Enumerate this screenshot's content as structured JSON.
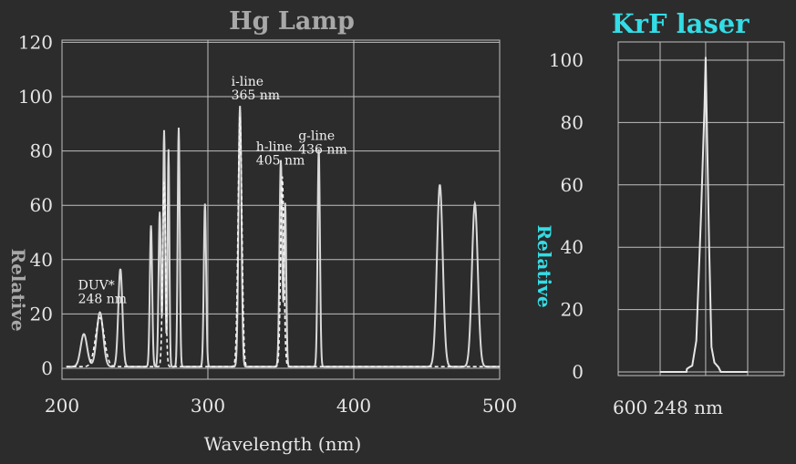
{
  "chart_data": [
    {
      "type": "line",
      "title": "Hg Lamp",
      "xlabel": "Wavelength (nm)",
      "ylabel": "Relative",
      "xlim": [
        200,
        500
      ],
      "ylim": [
        0,
        120
      ],
      "x_ticks": [
        200,
        300,
        400,
        500
      ],
      "y_ticks": [
        0,
        20,
        40,
        60,
        80,
        100,
        120
      ],
      "grid": true,
      "series": [
        {
          "style": "solid",
          "color": "#d9d9d9",
          "peaks": [
            {
              "x": 215,
              "y": 12,
              "w": 2.2
            },
            {
              "x": 226,
              "y": 20,
              "w": 2.2
            },
            {
              "x": 240,
              "y": 36,
              "w": 1.4
            },
            {
              "x": 261,
              "y": 52,
              "w": 0.8
            },
            {
              "x": 267,
              "y": 57,
              "w": 0.8
            },
            {
              "x": 270,
              "y": 87,
              "w": 0.7
            },
            {
              "x": 273,
              "y": 80,
              "w": 0.6
            },
            {
              "x": 280,
              "y": 88,
              "w": 0.7
            },
            {
              "x": 298,
              "y": 60,
              "w": 0.8
            },
            {
              "x": 322,
              "y": 96,
              "w": 1.0
            },
            {
              "x": 350,
              "y": 76,
              "w": 0.9
            },
            {
              "x": 353,
              "y": 60,
              "w": 0.7
            },
            {
              "x": 376,
              "y": 80,
              "w": 0.8
            },
            {
              "x": 459,
              "y": 67,
              "w": 2.0
            },
            {
              "x": 483,
              "y": 60,
              "w": 2.0
            }
          ]
        },
        {
          "style": "dashed",
          "color": "#f5f5f5",
          "peaks": [
            {
              "x": 226,
              "y": 18,
              "w": 3.0
            },
            {
              "x": 270,
              "y": 68,
              "w": 1.0
            },
            {
              "x": 322,
              "y": 92,
              "w": 1.3
            },
            {
              "x": 351,
              "y": 70,
              "w": 1.1
            }
          ]
        }
      ],
      "annotations": [
        {
          "lines": [
            "i-line",
            "365 nm"
          ],
          "x": 316,
          "y": 104
        },
        {
          "lines": [
            "h-line",
            "405 nm"
          ],
          "x": 333,
          "y": 80
        },
        {
          "lines": [
            "g-line",
            "436 nm"
          ],
          "x": 362,
          "y": 84
        },
        {
          "lines": [
            "DUV*",
            "248 nm"
          ],
          "x": 211,
          "y": 29
        }
      ]
    },
    {
      "type": "line",
      "title": "KrF laser",
      "xlabel": "",
      "ylabel": "Relative",
      "ylim": [
        0,
        104
      ],
      "y_ticks": [
        0,
        20,
        40,
        60,
        80,
        100
      ],
      "x_tick_labels": [
        "600",
        "248 nm"
      ],
      "grid": true,
      "series": [
        {
          "style": "solid",
          "color": "#e6e6e6",
          "points": [
            [
              0.0,
              0
            ],
            [
              0.45,
              0
            ],
            [
              0.46,
              1
            ],
            [
              0.5,
              1.5
            ],
            [
              0.55,
              2
            ],
            [
              0.62,
              10
            ],
            [
              0.7,
              50
            ],
            [
              0.76,
              85
            ],
            [
              0.78,
              101
            ],
            [
              0.8,
              80
            ],
            [
              0.84,
              40
            ],
            [
              0.88,
              8
            ],
            [
              0.93,
              3
            ],
            [
              1.0,
              1.5
            ],
            [
              1.04,
              0
            ],
            [
              1.5,
              0
            ]
          ]
        }
      ]
    }
  ]
}
